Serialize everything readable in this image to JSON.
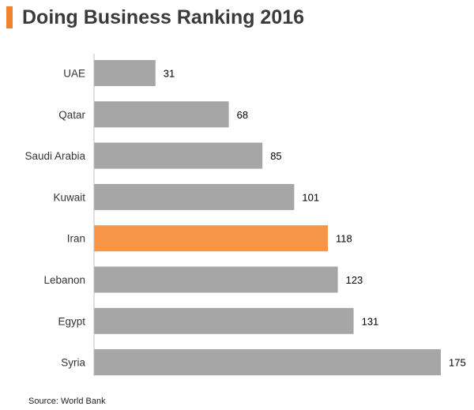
{
  "title": "Doing Business Ranking 2016",
  "source": "Source: World Bank",
  "colors": {
    "accent": "#F0822D",
    "bar": "#A6A6A6",
    "highlight": "#F79646",
    "axis": "#BFBFBF",
    "title": "#3A3A3A",
    "label": "#333333",
    "value": "#000000"
  },
  "chart_data": {
    "type": "bar",
    "orientation": "horizontal",
    "title": "Doing Business Ranking 2016",
    "xlabel": "",
    "ylabel": "",
    "categories": [
      "UAE",
      "Qatar",
      "Saudi Arabia",
      "Kuwait",
      "Iran",
      "Lebanon",
      "Egypt",
      "Syria"
    ],
    "values": [
      31,
      68,
      85,
      101,
      118,
      123,
      131,
      175
    ],
    "highlight": "Iran",
    "xlim": [
      0,
      175
    ],
    "grid": false,
    "legend": "none",
    "data_labels": true
  }
}
